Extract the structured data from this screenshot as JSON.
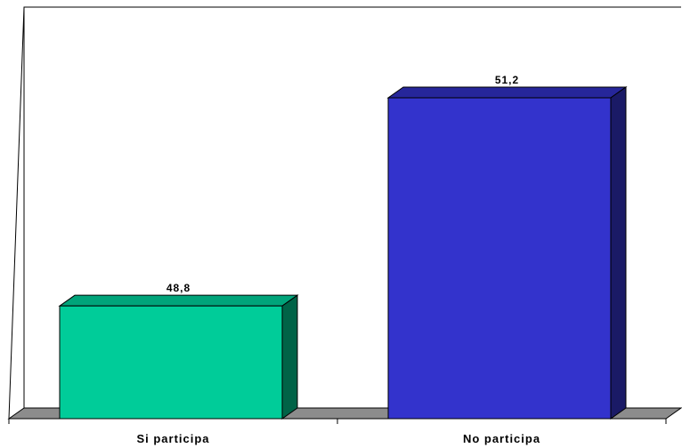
{
  "chart_data": {
    "type": "bar",
    "categories": [
      "Si participa",
      "No participa"
    ],
    "values": [
      48.8,
      51.2
    ],
    "value_labels": [
      "48,8",
      "51,2"
    ],
    "title": "",
    "xlabel": "",
    "ylabel": "",
    "ylim": [
      47.5,
      51.6
    ],
    "grid": false,
    "legend": "none",
    "style": "3d-bar",
    "colors": {
      "Si participa": {
        "front": "#00cc99",
        "top": "#00a47a",
        "side": "#006347"
      },
      "No participa": {
        "front": "#3333cc",
        "top": "#26269a",
        "side": "#1a1a66"
      },
      "floor": "#8c8c8c",
      "walls": "#000000"
    }
  }
}
